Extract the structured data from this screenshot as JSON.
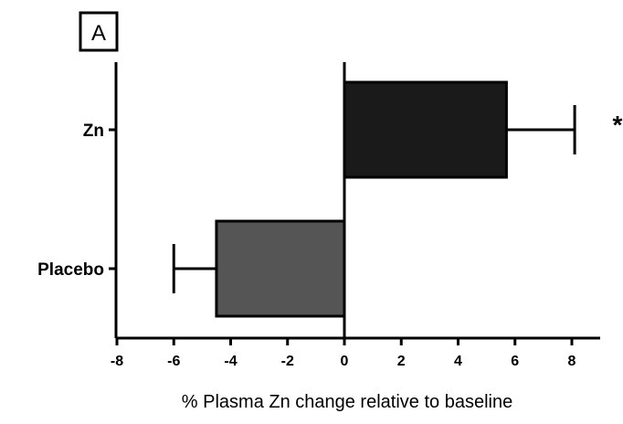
{
  "chart_data": {
    "type": "bar",
    "orientation": "horizontal",
    "panel_label": "A",
    "categories": [
      "Zn",
      "Placebo"
    ],
    "values": [
      5.7,
      -4.5
    ],
    "errors": [
      2.4,
      1.5
    ],
    "bar_colors": [
      "#1a1a1a",
      "#555555"
    ],
    "annotations": [
      "*",
      ""
    ],
    "xlabel": "% Plasma Zn change relative to baseline",
    "ylabel": "",
    "xlim": [
      -8,
      9
    ],
    "xticks": [
      -8,
      -6,
      -4,
      -2,
      0,
      2,
      4,
      6,
      8
    ],
    "grid": false
  }
}
